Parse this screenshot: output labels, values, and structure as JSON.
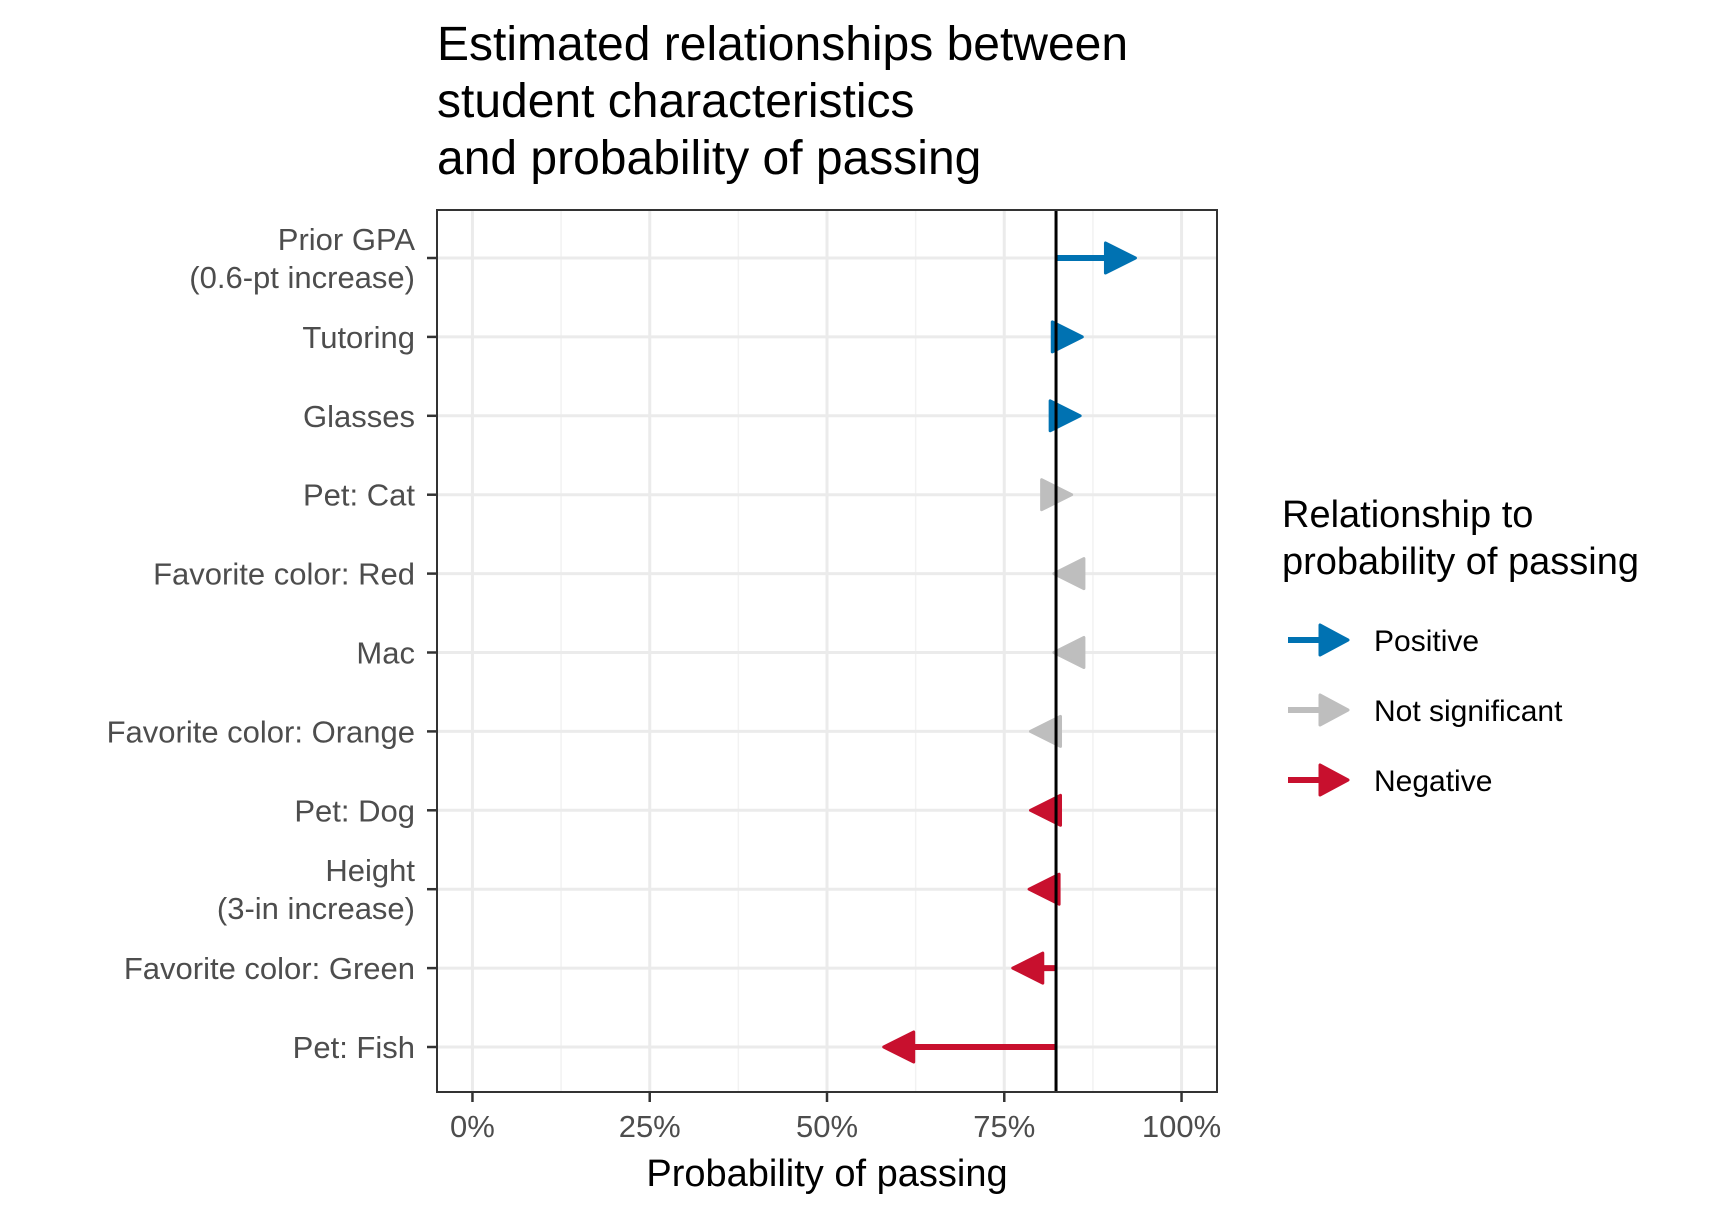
{
  "chart_data": {
    "type": "arrow",
    "title_lines": [
      "Estimated relationships between",
      "student characteristics",
      "and probability of passing"
    ],
    "xlabel": "Probability of passing",
    "ylabel": "",
    "xlim": [
      -0.05,
      1.05
    ],
    "x_ticks": [
      0,
      0.25,
      0.5,
      0.75,
      1.0
    ],
    "x_tick_labels": [
      "0%",
      "25%",
      "50%",
      "75%",
      "100%"
    ],
    "baseline": 0.823,
    "grid": true,
    "categories": [
      {
        "label_lines": [
          "Prior GPA",
          "(0.6-pt increase)"
        ],
        "start": 0.823,
        "end": 0.935,
        "relationship": "Positive"
      },
      {
        "label_lines": [
          "Tutoring"
        ],
        "start": 0.823,
        "end": 0.86,
        "relationship": "Positive"
      },
      {
        "label_lines": [
          "Glasses"
        ],
        "start": 0.818,
        "end": 0.857,
        "relationship": "Positive"
      },
      {
        "label_lines": [
          "Pet: Cat"
        ],
        "start": 0.805,
        "end": 0.845,
        "relationship": "Not significant"
      },
      {
        "label_lines": [
          "Favorite color: Red"
        ],
        "start": 0.855,
        "end": 0.82,
        "relationship": "Not significant"
      },
      {
        "label_lines": [
          "Mac"
        ],
        "start": 0.855,
        "end": 0.82,
        "relationship": "Not significant"
      },
      {
        "label_lines": [
          "Favorite color: Orange"
        ],
        "start": 0.823,
        "end": 0.787,
        "relationship": "Not significant"
      },
      {
        "label_lines": [
          "Pet: Dog"
        ],
        "start": 0.823,
        "end": 0.787,
        "relationship": "Negative"
      },
      {
        "label_lines": [
          "Height",
          "(3-in increase)"
        ],
        "start": 0.823,
        "end": 0.785,
        "relationship": "Negative"
      },
      {
        "label_lines": [
          "Favorite color: Green"
        ],
        "start": 0.823,
        "end": 0.762,
        "relationship": "Negative"
      },
      {
        "label_lines": [
          "Pet: Fish"
        ],
        "start": 0.823,
        "end": 0.58,
        "relationship": "Negative"
      }
    ],
    "legend": {
      "title_lines": [
        "Relationship to",
        "probability of passing"
      ],
      "placement": "right",
      "items": [
        {
          "label": "Positive",
          "color": "#0072B2"
        },
        {
          "label": "Not significant",
          "color": "#BEBEBE"
        },
        {
          "label": "Negative",
          "color": "#C8102E"
        }
      ]
    }
  }
}
